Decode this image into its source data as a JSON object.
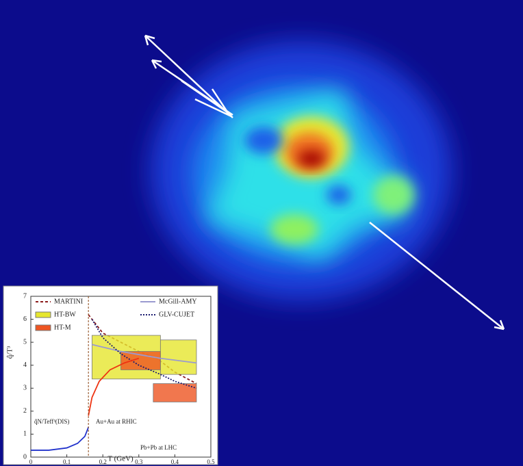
{
  "chart_data": {
    "type": "line",
    "xlabel": "T (GeV)",
    "ylabel": "q̂/T³",
    "xlim": [
      0,
      0.5
    ],
    "ylim": [
      0,
      7
    ],
    "xticks": [
      0,
      0.1,
      0.2,
      0.3,
      0.4,
      0.5
    ],
    "yticks": [
      0,
      1,
      2,
      3,
      4,
      5,
      6,
      7
    ],
    "series": [
      {
        "name": "MARTINI",
        "color": "#8b1a1a",
        "dash": "4 3",
        "x": [
          0.16,
          0.2,
          0.25,
          0.3,
          0.35,
          0.4,
          0.46
        ],
        "values": [
          6.2,
          5.4,
          5.0,
          4.6,
          4.3,
          3.7,
          3.2
        ]
      },
      {
        "name": "HT-BW",
        "color": "#e6e62e",
        "boxes": [
          {
            "x": [
              0.17,
              0.36
            ],
            "y": [
              3.4,
              5.3
            ]
          },
          {
            "x": [
              0.36,
              0.46
            ],
            "y": [
              3.6,
              5.1
            ]
          }
        ]
      },
      {
        "name": "HT-M",
        "color": "#ee5522",
        "boxes": [
          {
            "x": [
              0.25,
              0.36
            ],
            "y": [
              3.8,
              4.6
            ]
          },
          {
            "x": [
              0.34,
              0.46
            ],
            "y": [
              2.4,
              3.2
            ]
          }
        ]
      },
      {
        "name": "McGill-AMY",
        "color": "#9a9ad0",
        "dash": "",
        "x": [
          0.17,
          0.25,
          0.36,
          0.46
        ],
        "values": [
          4.9,
          4.6,
          4.3,
          4.1
        ]
      },
      {
        "name": "GLV-CUJET",
        "color": "#1a1a6e",
        "dash": "2 2",
        "x": [
          0.17,
          0.2,
          0.25,
          0.3,
          0.36,
          0.4,
          0.46
        ],
        "values": [
          6.0,
          5.2,
          4.5,
          4.0,
          3.6,
          3.3,
          3.0
        ]
      }
    ],
    "curves": [
      {
        "color": "#2233cc",
        "x": [
          0,
          0.05,
          0.1,
          0.13,
          0.15,
          0.16
        ],
        "values": [
          0.3,
          0.3,
          0.4,
          0.6,
          0.9,
          1.3
        ]
      },
      {
        "color": "#ee3311",
        "x": [
          0.16,
          0.17,
          0.19,
          0.22,
          0.26,
          0.3
        ],
        "values": [
          1.8,
          2.6,
          3.3,
          3.8,
          4.1,
          4.3
        ]
      }
    ],
    "annotations": [
      "q̂N/Teff³(DIS)",
      "Au+Au at RHIC",
      "Pb+Pb at LHC"
    ]
  }
}
